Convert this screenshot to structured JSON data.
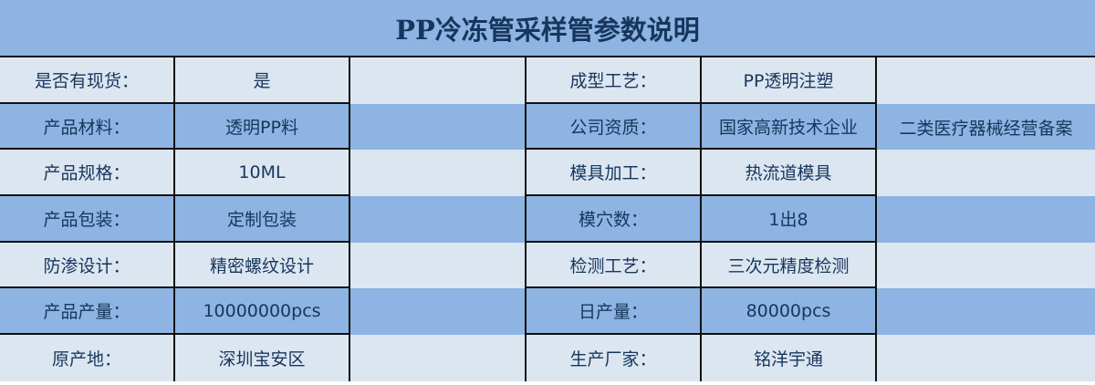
{
  "title": "PP冷冻管采样管参数说明",
  "colors": {
    "light_row": "#dce6f1",
    "dark_row": "#8db4e2",
    "text": "#17365d"
  },
  "rows": [
    {
      "label1": "是否有现货：",
      "value1": "是",
      "extra1": "",
      "label2": "成型工艺：",
      "value2": "PP透明注塑",
      "extra2": ""
    },
    {
      "label1": "产品材料：",
      "value1": "透明PP料",
      "extra1": "",
      "label2": "公司资质：",
      "value2": "国家高新技术企业",
      "extra2": "二类医疗器械经营备案"
    },
    {
      "label1": "产品规格：",
      "value1": "10ML",
      "extra1": "",
      "label2": "模具加工：",
      "value2": "热流道模具",
      "extra2": ""
    },
    {
      "label1": "产品包装：",
      "value1": "定制包装",
      "extra1": "",
      "label2": "模穴数：",
      "value2": "1出8",
      "extra2": ""
    },
    {
      "label1": "防渗设计：",
      "value1": "精密螺纹设计",
      "extra1": "",
      "label2": "检测工艺：",
      "value2": "三次元精度检测",
      "extra2": ""
    },
    {
      "label1": "产品产量：",
      "value1": "10000000pcs",
      "extra1": "",
      "label2": "日产量：",
      "value2": "80000pcs",
      "extra2": ""
    },
    {
      "label1": "原产地：",
      "value1": "深圳宝安区",
      "extra1": "",
      "label2": "生产厂家：",
      "value2": "铭洋宇通",
      "extra2": ""
    }
  ]
}
